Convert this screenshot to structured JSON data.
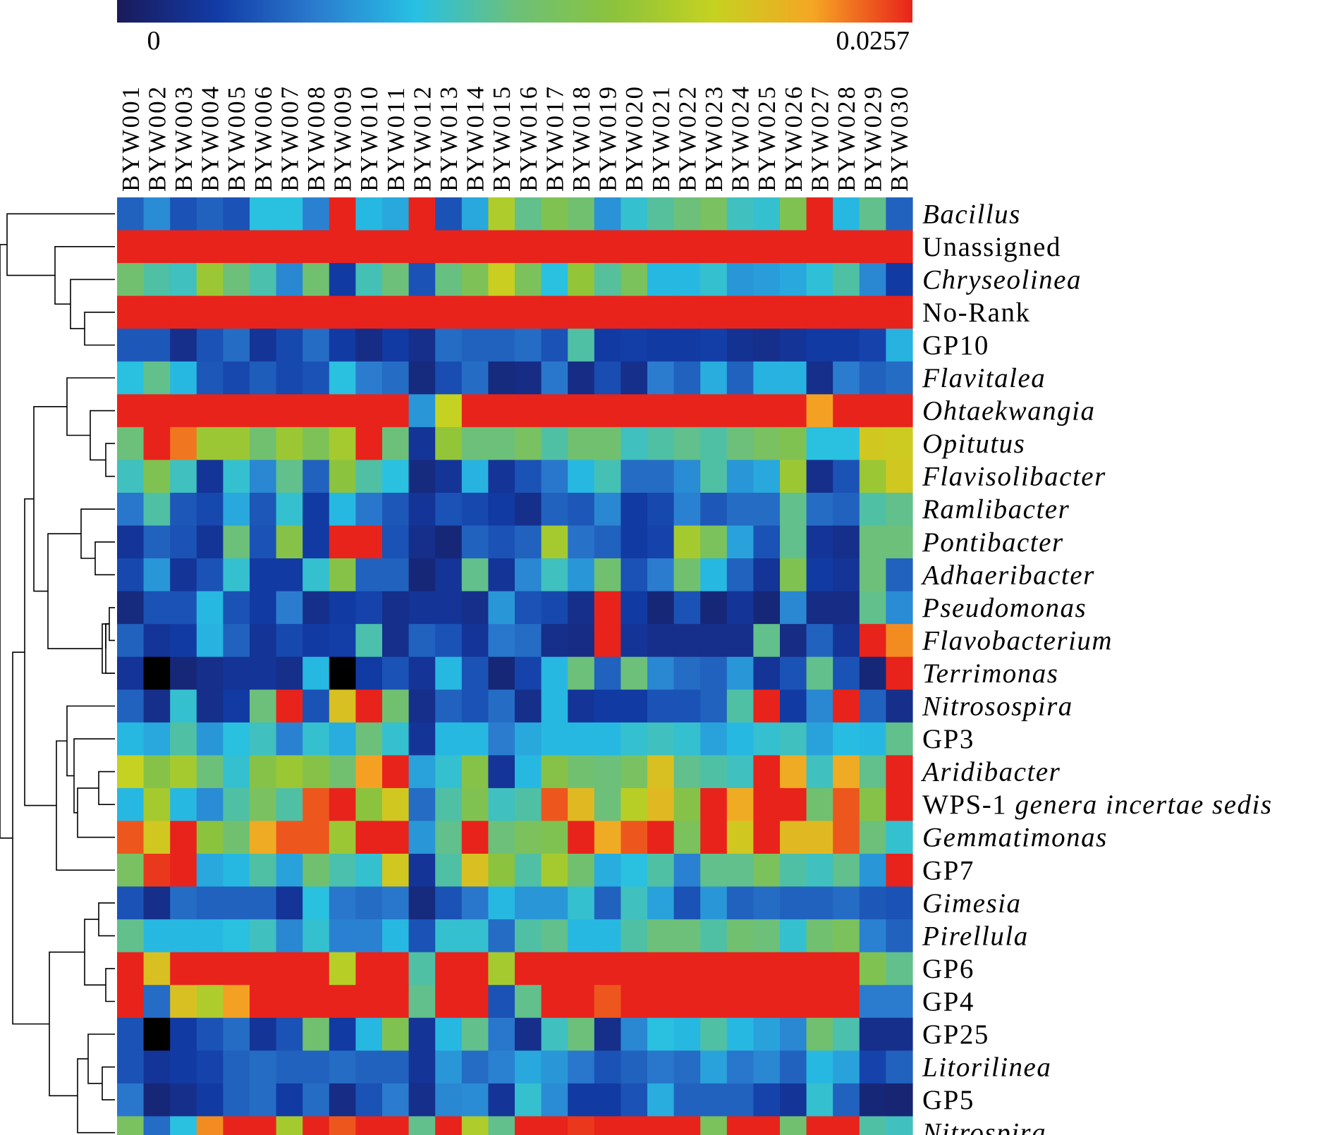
{
  "chart_data": {
    "type": "heatmap",
    "title": "",
    "color_scale": {
      "min_label": "0",
      "max_label": "0.0257",
      "min": 0,
      "max": 0.0257,
      "colors": [
        "#1a1a5a",
        "#123ba6",
        "#2b7ccf",
        "#27c0e4",
        "#6cc07a",
        "#8cc33c",
        "#c5d221",
        "#f5a623",
        "#e8231b"
      ]
    },
    "columns": [
      "BYW001",
      "BYW002",
      "BYW003",
      "BYW004",
      "BYW005",
      "BYW006",
      "BYW007",
      "BYW008",
      "BYW009",
      "BYW010",
      "BYW011",
      "BYW012",
      "BYW013",
      "BYW014",
      "BYW015",
      "BYW016",
      "BYW017",
      "BYW018",
      "BYW019",
      "BYW020",
      "BYW021",
      "BYW022",
      "BYW023",
      "BYW024",
      "BYW025",
      "BYW026",
      "BYW027",
      "BYW028",
      "BYW029",
      "BYW030"
    ],
    "rows": [
      {
        "label": "Bacillus",
        "italic": true
      },
      {
        "label": "Unassigned",
        "italic": false
      },
      {
        "label": "Chryseolinea",
        "italic": true
      },
      {
        "label": "No-Rank",
        "italic": false
      },
      {
        "label": "GP10",
        "italic": false
      },
      {
        "label": "Flavitalea",
        "italic": true
      },
      {
        "label": "Ohtaekwangia",
        "italic": true
      },
      {
        "label": "Opitutus",
        "italic": true
      },
      {
        "label": "Flavisolibacter",
        "italic": true
      },
      {
        "label": "Ramlibacter",
        "italic": true
      },
      {
        "label": "Pontibacter",
        "italic": true
      },
      {
        "label": "Adhaeribacter",
        "italic": true
      },
      {
        "label": "Pseudomonas",
        "italic": true
      },
      {
        "label": "Flavobacterium",
        "italic": true
      },
      {
        "label": "Terrimonas",
        "italic": true
      },
      {
        "label": "Nitrosospira",
        "italic": true
      },
      {
        "label": "GP3",
        "italic": false
      },
      {
        "label": "Aridibacter",
        "italic": true
      },
      {
        "label": "WPS-1",
        "italic": false,
        "suffix": "genera incertae sedis"
      },
      {
        "label": "Gemmatimonas",
        "italic": true
      },
      {
        "label": "GP7",
        "italic": false
      },
      {
        "label": "Gimesia",
        "italic": true
      },
      {
        "label": "Pirellula",
        "italic": true
      },
      {
        "label": "GP6",
        "italic": false
      },
      {
        "label": "GP4",
        "italic": false
      },
      {
        "label": "GP25",
        "italic": false
      },
      {
        "label": "Litorilinea",
        "italic": true
      },
      {
        "label": "GP5",
        "italic": false
      },
      {
        "label": "Nitrospira",
        "italic": true
      }
    ],
    "values_scale": "fraction of max (0 = 0, 1 = 0.0257)",
    "values": [
      [
        0.2,
        0.28,
        0.17,
        0.2,
        0.17,
        0.38,
        0.38,
        0.26,
        1.0,
        0.36,
        0.33,
        1.0,
        0.17,
        0.33,
        0.7,
        0.48,
        0.58,
        0.52,
        0.29,
        0.4,
        0.46,
        0.5,
        0.55,
        0.42,
        0.4,
        0.58,
        1.0,
        0.36,
        0.48,
        0.2
      ],
      [
        1,
        1,
        1,
        1,
        1,
        1,
        1,
        1,
        1,
        1,
        1,
        1,
        1,
        1,
        1,
        1,
        1,
        1,
        1,
        1,
        1,
        1,
        1,
        1,
        1,
        1,
        1,
        1,
        1,
        1
      ],
      [
        0.52,
        0.45,
        0.42,
        0.66,
        0.5,
        0.44,
        0.27,
        0.52,
        0.12,
        0.43,
        0.5,
        0.17,
        0.49,
        0.57,
        0.76,
        0.56,
        0.38,
        0.64,
        0.46,
        0.56,
        0.36,
        0.36,
        0.4,
        0.3,
        0.31,
        0.33,
        0.39,
        0.45,
        0.27,
        0.12
      ],
      [
        1,
        1,
        1,
        1,
        1,
        1,
        1,
        1,
        1,
        1,
        1,
        1,
        1,
        1,
        1,
        1,
        1,
        1,
        1,
        1,
        1,
        1,
        1,
        1,
        1,
        1,
        1,
        1,
        1,
        1
      ],
      [
        0.18,
        0.18,
        0.08,
        0.17,
        0.22,
        0.1,
        0.15,
        0.22,
        0.12,
        0.07,
        0.12,
        0.08,
        0.22,
        0.2,
        0.2,
        0.22,
        0.17,
        0.45,
        0.12,
        0.13,
        0.12,
        0.12,
        0.13,
        0.09,
        0.08,
        0.1,
        0.12,
        0.12,
        0.14,
        0.35
      ],
      [
        0.38,
        0.48,
        0.36,
        0.18,
        0.15,
        0.19,
        0.15,
        0.17,
        0.38,
        0.25,
        0.22,
        0.06,
        0.16,
        0.22,
        0.06,
        0.07,
        0.24,
        0.07,
        0.16,
        0.08,
        0.25,
        0.2,
        0.34,
        0.2,
        0.35,
        0.35,
        0.08,
        0.25,
        0.2,
        0.22
      ],
      [
        1,
        1,
        1,
        1,
        1,
        1,
        1,
        1,
        1,
        1,
        1,
        0.3,
        0.75,
        1,
        1,
        1,
        1,
        1,
        1,
        1,
        1,
        1,
        1,
        1,
        1,
        1,
        0.88,
        1,
        1,
        1
      ],
      [
        0.5,
        1.0,
        0.92,
        0.66,
        0.66,
        0.52,
        0.66,
        0.57,
        0.68,
        1.0,
        0.5,
        0.1,
        0.64,
        0.5,
        0.5,
        0.55,
        0.45,
        0.52,
        0.52,
        0.42,
        0.45,
        0.48,
        0.45,
        0.5,
        0.55,
        0.58,
        0.38,
        0.38,
        0.78,
        0.77
      ],
      [
        0.42,
        0.58,
        0.42,
        0.1,
        0.4,
        0.27,
        0.48,
        0.2,
        0.62,
        0.45,
        0.38,
        0.06,
        0.1,
        0.35,
        0.1,
        0.17,
        0.24,
        0.36,
        0.43,
        0.22,
        0.22,
        0.28,
        0.45,
        0.3,
        0.33,
        0.66,
        0.08,
        0.17,
        0.66,
        0.78
      ],
      [
        0.24,
        0.45,
        0.18,
        0.15,
        0.33,
        0.18,
        0.4,
        0.12,
        0.36,
        0.24,
        0.18,
        0.1,
        0.17,
        0.15,
        0.12,
        0.08,
        0.2,
        0.18,
        0.27,
        0.12,
        0.15,
        0.26,
        0.18,
        0.22,
        0.22,
        0.48,
        0.22,
        0.2,
        0.45,
        0.48
      ],
      [
        0.1,
        0.2,
        0.17,
        0.1,
        0.5,
        0.17,
        0.6,
        0.12,
        1.0,
        1.0,
        0.17,
        0.08,
        0.05,
        0.2,
        0.17,
        0.2,
        0.68,
        0.23,
        0.2,
        0.12,
        0.14,
        0.68,
        0.56,
        0.32,
        0.17,
        0.48,
        0.1,
        0.08,
        0.5,
        0.5
      ],
      [
        0.15,
        0.3,
        0.1,
        0.17,
        0.4,
        0.12,
        0.12,
        0.4,
        0.6,
        0.2,
        0.2,
        0.05,
        0.1,
        0.48,
        0.1,
        0.27,
        0.42,
        0.3,
        0.52,
        0.17,
        0.25,
        0.52,
        0.36,
        0.2,
        0.1,
        0.58,
        0.12,
        0.1,
        0.5,
        0.2
      ],
      [
        0.06,
        0.17,
        0.17,
        0.36,
        0.17,
        0.12,
        0.25,
        0.08,
        0.12,
        0.14,
        0.08,
        0.1,
        0.1,
        0.08,
        0.3,
        0.17,
        0.15,
        0.08,
        1.0,
        0.12,
        0.05,
        0.17,
        0.05,
        0.1,
        0.05,
        0.27,
        0.07,
        0.07,
        0.48,
        0.28
      ],
      [
        0.2,
        0.1,
        0.12,
        0.35,
        0.2,
        0.1,
        0.15,
        0.12,
        0.13,
        0.44,
        0.08,
        0.2,
        0.17,
        0.1,
        0.24,
        0.22,
        0.08,
        0.07,
        1.0,
        0.1,
        0.08,
        0.08,
        0.08,
        0.08,
        0.48,
        0.07,
        0.2,
        0.1,
        1.0,
        0.9
      ],
      [
        0.1,
        -1,
        0.05,
        0.08,
        0.1,
        0.1,
        0.08,
        0.36,
        -1,
        0.12,
        0.17,
        0.1,
        0.36,
        0.17,
        0.05,
        0.14,
        0.36,
        0.5,
        0.2,
        0.5,
        0.27,
        0.22,
        0.2,
        0.3,
        0.1,
        0.17,
        0.48,
        0.17,
        0.05,
        1.0
      ],
      [
        0.2,
        0.08,
        0.4,
        0.08,
        0.12,
        0.5,
        1.0,
        0.17,
        0.8,
        1.0,
        0.52,
        0.08,
        0.2,
        0.17,
        0.22,
        0.08,
        0.36,
        0.1,
        0.12,
        0.12,
        0.17,
        0.17,
        0.2,
        0.45,
        1.0,
        0.12,
        0.27,
        1.0,
        0.2,
        0.08
      ],
      [
        0.36,
        0.33,
        0.45,
        0.3,
        0.38,
        0.42,
        0.26,
        0.4,
        0.34,
        0.5,
        0.4,
        0.1,
        0.36,
        0.36,
        0.25,
        0.33,
        0.36,
        0.36,
        0.36,
        0.4,
        0.42,
        0.4,
        0.32,
        0.36,
        0.4,
        0.42,
        0.32,
        0.37,
        0.36,
        0.48
      ],
      [
        0.75,
        0.6,
        0.68,
        0.5,
        0.4,
        0.6,
        0.66,
        0.6,
        0.52,
        0.88,
        1.0,
        0.32,
        0.4,
        0.6,
        0.1,
        0.36,
        0.6,
        0.52,
        0.5,
        0.55,
        0.8,
        0.48,
        0.45,
        0.42,
        1.0,
        0.86,
        0.42,
        0.86,
        0.48,
        1.0
      ],
      [
        0.36,
        0.68,
        0.36,
        0.28,
        0.45,
        0.55,
        0.45,
        0.95,
        1.0,
        0.62,
        0.78,
        0.22,
        0.45,
        0.58,
        0.42,
        0.45,
        0.95,
        0.82,
        0.5,
        0.72,
        0.82,
        0.6,
        1.0,
        0.86,
        1.0,
        1.0,
        0.52,
        0.95,
        0.6,
        1.0
      ],
      [
        0.95,
        0.78,
        1.0,
        0.62,
        0.52,
        0.86,
        0.95,
        0.95,
        0.66,
        1.0,
        1.0,
        0.3,
        0.48,
        1.0,
        0.5,
        0.56,
        0.58,
        1.0,
        0.86,
        0.95,
        1.0,
        0.56,
        1.0,
        0.78,
        1.0,
        0.82,
        0.82,
        0.95,
        0.5,
        0.4
      ],
      [
        0.55,
        0.98,
        1.0,
        0.33,
        0.36,
        0.45,
        0.32,
        0.52,
        0.44,
        0.4,
        0.78,
        0.1,
        0.45,
        0.8,
        0.62,
        0.45,
        0.68,
        0.52,
        0.34,
        0.38,
        0.45,
        0.26,
        0.48,
        0.48,
        0.56,
        0.45,
        0.42,
        0.48,
        0.3,
        1.0
      ],
      [
        0.17,
        0.08,
        0.22,
        0.2,
        0.2,
        0.2,
        0.1,
        0.38,
        0.24,
        0.22,
        0.24,
        0.06,
        0.17,
        0.24,
        0.36,
        0.3,
        0.3,
        0.4,
        0.2,
        0.42,
        0.32,
        0.17,
        0.3,
        0.2,
        0.22,
        0.2,
        0.2,
        0.22,
        0.18,
        0.17
      ],
      [
        0.48,
        0.36,
        0.36,
        0.36,
        0.38,
        0.42,
        0.27,
        0.4,
        0.26,
        0.26,
        0.36,
        0.17,
        0.4,
        0.4,
        0.22,
        0.45,
        0.48,
        0.36,
        0.36,
        0.45,
        0.5,
        0.5,
        0.45,
        0.52,
        0.5,
        0.4,
        0.52,
        0.56,
        0.26,
        0.2
      ],
      [
        1,
        0.8,
        1,
        1,
        1,
        1,
        1,
        1,
        0.72,
        1,
        1,
        0.45,
        1,
        1,
        0.68,
        1,
        1,
        1,
        1,
        1,
        1,
        1,
        1,
        1,
        1,
        1,
        1,
        1,
        0.58,
        0.48
      ],
      [
        1,
        0.22,
        0.8,
        0.7,
        0.88,
        1,
        1,
        1,
        1,
        1,
        1,
        0.48,
        1,
        1,
        0.17,
        0.48,
        1,
        1,
        0.95,
        1,
        1,
        1,
        1,
        1,
        1,
        1,
        1,
        1,
        0.25,
        0.25
      ],
      [
        0.17,
        -1,
        0.12,
        0.17,
        0.22,
        0.1,
        0.17,
        0.52,
        0.12,
        0.36,
        0.58,
        0.1,
        0.36,
        0.48,
        0.24,
        0.08,
        0.42,
        0.5,
        0.08,
        0.27,
        0.38,
        0.36,
        0.45,
        0.36,
        0.32,
        0.27,
        0.52,
        0.44,
        0.08,
        0.08
      ],
      [
        0.17,
        0.1,
        0.12,
        0.14,
        0.2,
        0.22,
        0.2,
        0.2,
        0.22,
        0.2,
        0.2,
        0.1,
        0.3,
        0.22,
        0.26,
        0.33,
        0.3,
        0.24,
        0.17,
        0.2,
        0.24,
        0.22,
        0.32,
        0.24,
        0.27,
        0.2,
        0.36,
        0.32,
        0.14,
        0.2
      ],
      [
        0.24,
        0.05,
        0.08,
        0.12,
        0.2,
        0.22,
        0.12,
        0.22,
        0.07,
        0.17,
        0.25,
        0.08,
        0.27,
        0.28,
        0.1,
        0.4,
        0.28,
        0.12,
        0.12,
        0.17,
        0.34,
        0.2,
        0.2,
        0.2,
        0.14,
        0.1,
        0.4,
        0.2,
        0.05,
        0.04
      ],
      [
        0.55,
        0.22,
        0.38,
        0.9,
        1.0,
        1.0,
        0.68,
        1.0,
        0.95,
        1.0,
        1.0,
        0.48,
        1.0,
        0.7,
        0.48,
        1.0,
        1.0,
        0.98,
        1.0,
        1.0,
        1.0,
        1.0,
        0.56,
        1.0,
        1.0,
        0.52,
        1.0,
        1.0,
        0.45,
        0.42
      ]
    ]
  }
}
